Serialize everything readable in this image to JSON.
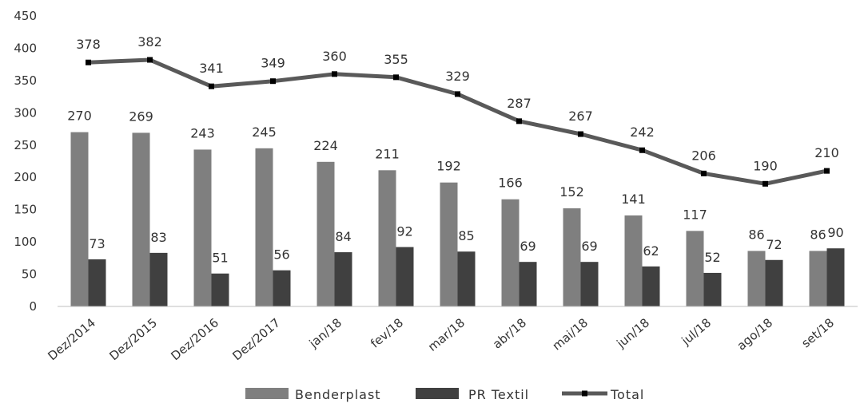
{
  "chart_data": {
    "type": "bar",
    "categories": [
      "Dez/2014",
      "Dez/2015",
      "Dez/2016",
      "Dez/2017",
      "jan/18",
      "fev/18",
      "mar/18",
      "abr/18",
      "mai/18",
      "jun/18",
      "jul/18",
      "ago/18",
      "set/18"
    ],
    "series": [
      {
        "name": "Benderplast",
        "type": "bar",
        "color": "#7f7f7f",
        "values": [
          270,
          269,
          243,
          245,
          224,
          211,
          192,
          166,
          152,
          141,
          117,
          86,
          86
        ]
      },
      {
        "name": "PR Textil",
        "type": "bar",
        "color": "#404040",
        "values": [
          73,
          83,
          51,
          56,
          84,
          92,
          85,
          69,
          69,
          62,
          52,
          72,
          90
        ]
      },
      {
        "name": "Total",
        "type": "line",
        "color": "#595959",
        "values": [
          378,
          382,
          341,
          349,
          360,
          355,
          329,
          287,
          267,
          242,
          206,
          190,
          210
        ]
      }
    ],
    "ylim": [
      0,
      450
    ],
    "yticks": [
      0,
      50,
      100,
      150,
      200,
      250,
      300,
      350,
      400,
      450
    ],
    "grid": false,
    "legend": "bottom",
    "data_labels": true
  }
}
